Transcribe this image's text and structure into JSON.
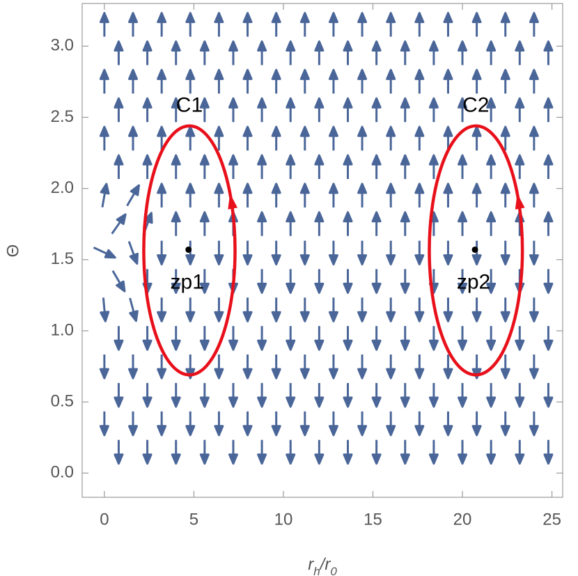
{
  "chart_data": {
    "type": "vector_field",
    "x_label": [
      "r",
      "h",
      "/r",
      "0"
    ],
    "y_label": "Θ",
    "xlim": [
      -1.24,
      25.6
    ],
    "ylim": [
      -0.17,
      3.3
    ],
    "xticks": [
      0,
      5,
      10,
      15,
      20,
      25
    ],
    "yticks": [
      {
        "value": 0,
        "label": "0.0"
      },
      {
        "value": 0.5,
        "label": "0.5"
      },
      {
        "value": 1,
        "label": "1.0"
      },
      {
        "value": 1.5,
        "label": "1.5"
      },
      {
        "value": 2,
        "label": "2.0"
      },
      {
        "value": 2.5,
        "label": "2.5"
      },
      {
        "value": 3,
        "label": "3.0"
      }
    ],
    "color": "#4a6699",
    "x_grid": [
      [
        0.8,
        2.4,
        4.0,
        5.6,
        7.2,
        8.8,
        10.4,
        12.0,
        13.6,
        15.2,
        16.8,
        18.4,
        20.0,
        21.6,
        23.2,
        24.8
      ],
      [
        0,
        1.6,
        3.2,
        4.8,
        6.4,
        8.0,
        9.6,
        11.2,
        12.8,
        14.4,
        16.0,
        17.6,
        19.2,
        20.8,
        22.4,
        24.0
      ]
    ],
    "rows": [
      {
        "y": 0.15,
        "angle": [
          -90,
          -90,
          -90,
          -90,
          -90,
          -90,
          -90,
          -90,
          -90,
          -90,
          -90,
          -90,
          -90,
          -90,
          -90,
          -90
        ]
      },
      {
        "y": 0.35,
        "angle": [
          -90,
          -90,
          -90,
          -90,
          -90,
          -90,
          -90,
          -90,
          -90,
          -90,
          -90,
          -90,
          -90,
          -90,
          -90,
          -90
        ]
      },
      {
        "y": 0.55,
        "angle": [
          -90,
          -90,
          -90,
          -90,
          -90,
          -90,
          -90,
          -90,
          -90,
          -90,
          -90,
          -90,
          -90,
          -90,
          -90,
          -90
        ]
      },
      {
        "y": 0.75,
        "angle": [
          -90,
          -90,
          -90,
          -90,
          -90,
          -90,
          -90,
          -90,
          -90,
          -90,
          -90,
          -90,
          -90,
          -90,
          -90,
          -90
        ]
      },
      {
        "y": 0.95,
        "angle": [
          -90,
          -90,
          -90,
          -90,
          -90,
          -90,
          -90,
          -90,
          -90,
          -90,
          -90,
          -90,
          -90,
          -90,
          -90,
          -90
        ]
      },
      {
        "y": 1.15,
        "angle": [
          -85,
          -75,
          -90,
          -90,
          -90,
          -90,
          -90,
          -90,
          -90,
          -90,
          -90,
          -90,
          -90,
          -90,
          -90,
          -90
        ]
      },
      {
        "y": 1.35,
        "angle": [
          -60,
          -90,
          -90,
          -90,
          -90,
          -90,
          -90,
          -90,
          -90,
          -90,
          -90,
          -90,
          -90,
          -90,
          -90,
          -90
        ]
      },
      {
        "y": 1.55,
        "angle": [
          -25,
          -70,
          -90,
          -90,
          -90,
          -90,
          -90,
          -90,
          -90,
          -90,
          -90,
          -90,
          -90,
          -90,
          -90,
          -90
        ]
      },
      {
        "y": 1.75,
        "angle": [
          55,
          70,
          90,
          90,
          90,
          90,
          90,
          90,
          90,
          90,
          90,
          90,
          90,
          90,
          90,
          90
        ]
      },
      {
        "y": 1.95,
        "angle": [
          80,
          60,
          90,
          90,
          90,
          90,
          90,
          90,
          90,
          90,
          90,
          90,
          90,
          90,
          90,
          90
        ]
      },
      {
        "y": 2.15,
        "angle": [
          90,
          90,
          90,
          90,
          90,
          90,
          90,
          90,
          90,
          90,
          90,
          90,
          90,
          90,
          90,
          90
        ]
      },
      {
        "y": 2.35,
        "angle": [
          90,
          90,
          90,
          90,
          90,
          90,
          90,
          90,
          90,
          90,
          90,
          90,
          90,
          90,
          90,
          90
        ]
      },
      {
        "y": 2.55,
        "angle": [
          90,
          90,
          90,
          90,
          90,
          90,
          90,
          90,
          90,
          90,
          90,
          90,
          90,
          90,
          90,
          90
        ]
      },
      {
        "y": 2.75,
        "angle": [
          90,
          90,
          90,
          90,
          90,
          90,
          90,
          90,
          90,
          90,
          90,
          90,
          90,
          90,
          90,
          90
        ]
      },
      {
        "y": 2.95,
        "angle": [
          90,
          90,
          90,
          90,
          90,
          90,
          90,
          90,
          90,
          90,
          90,
          90,
          90,
          90,
          90,
          90
        ]
      },
      {
        "y": 3.15,
        "angle": [
          90,
          90,
          90,
          90,
          90,
          90,
          90,
          90,
          90,
          90,
          90,
          90,
          90,
          90,
          90,
          90
        ]
      }
    ],
    "contours": [
      {
        "name": "C1",
        "center": [
          4.75,
          1.565
        ],
        "rx": 2.55,
        "ry": 0.875,
        "color": "#e8101a"
      },
      {
        "name": "C2",
        "center": [
          20.75,
          1.565
        ],
        "rx": 2.6,
        "ry": 0.875,
        "color": "#e8101a"
      }
    ],
    "zero_points": [
      {
        "name": "zp1",
        "x": 4.7,
        "y": 1.57
      },
      {
        "name": "zp2",
        "x": 20.7,
        "y": 1.57
      }
    ]
  }
}
